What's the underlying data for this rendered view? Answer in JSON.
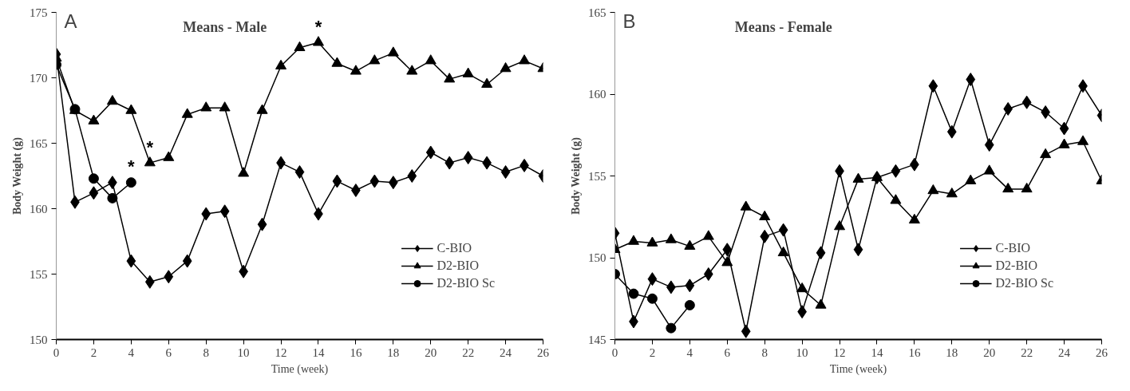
{
  "chart_data": [
    {
      "type": "line",
      "title": "Means - Male",
      "xlabel": "Time (week)",
      "ylabel": "Body Weight (g)",
      "x": [
        0,
        1,
        2,
        3,
        4,
        5,
        6,
        7,
        8,
        9,
        10,
        11,
        12,
        13,
        14,
        15,
        16,
        17,
        18,
        19,
        20,
        21,
        22,
        23,
        24,
        25,
        26
      ],
      "series": [
        {
          "name": "C-BIO",
          "color": "#000000",
          "marker": "diamond",
          "values": [
            171.8,
            160.5,
            161.2,
            162.0,
            156.0,
            154.4,
            154.8,
            156.0,
            159.6,
            159.8,
            155.2,
            158.8,
            163.5,
            162.8,
            159.6,
            162.1,
            161.4,
            162.1,
            162.0,
            162.5,
            164.3,
            163.5,
            163.9,
            163.5,
            162.8,
            163.3,
            162.5
          ]
        },
        {
          "name": "D2-BIO",
          "color": "#000000",
          "marker": "triangle",
          "values": [
            171.5,
            167.5,
            166.7,
            168.2,
            167.5,
            163.5,
            163.9,
            167.2,
            167.7,
            167.7,
            162.7,
            167.5,
            170.9,
            172.3,
            172.7,
            171.1,
            170.5,
            171.3,
            171.9,
            170.5,
            171.3,
            169.9,
            170.3,
            169.5,
            170.7,
            171.3,
            170.7
          ]
        },
        {
          "name": "D2-BIO Sc",
          "color": "#000000",
          "marker": "circle",
          "x": [
            0,
            1,
            2,
            3,
            4
          ],
          "values": [
            171.0,
            167.6,
            162.3,
            160.8,
            162.0
          ]
        }
      ],
      "xlim": [
        0,
        26
      ],
      "xticks": [
        0,
        2,
        4,
        6,
        8,
        10,
        12,
        14,
        16,
        18,
        20,
        22,
        24,
        26
      ],
      "ylim": [
        150,
        175
      ],
      "yticks": [
        150,
        155,
        160,
        165,
        170,
        175
      ],
      "grid": false,
      "legend": "bottom right",
      "annotations": [
        "A",
        {
          "text": "*",
          "x": 4,
          "y": 162.0
        },
        {
          "text": "*",
          "x": 5,
          "y": 163.5
        },
        {
          "text": "*",
          "x": 14,
          "y": 172.7
        }
      ]
    },
    {
      "type": "line",
      "title": "Means - Female",
      "xlabel": "Time (week)",
      "ylabel": "Body Weight (g)",
      "x": [
        0,
        1,
        2,
        3,
        4,
        5,
        6,
        7,
        8,
        9,
        10,
        11,
        12,
        13,
        14,
        15,
        16,
        17,
        18,
        19,
        20,
        21,
        22,
        23,
        24,
        25,
        26
      ],
      "series": [
        {
          "name": "C-BIO",
          "color": "#000000",
          "marker": "diamond",
          "values": [
            151.5,
            146.1,
            148.7,
            148.2,
            148.3,
            149.0,
            150.5,
            145.5,
            151.3,
            151.7,
            146.7,
            150.3,
            155.3,
            150.5,
            154.9,
            155.3,
            155.7,
            160.5,
            157.7,
            160.9,
            156.9,
            159.1,
            159.5,
            158.9,
            157.9,
            160.5,
            158.7
          ]
        },
        {
          "name": "D2-BIO",
          "color": "#000000",
          "marker": "triangle",
          "values": [
            150.5,
            151.0,
            150.9,
            151.1,
            150.7,
            151.3,
            149.7,
            153.1,
            152.5,
            150.3,
            148.1,
            147.1,
            151.9,
            154.8,
            154.9,
            153.5,
            152.3,
            154.1,
            153.9,
            154.7,
            155.3,
            154.2,
            154.2,
            156.3,
            156.9,
            157.1,
            154.7
          ]
        },
        {
          "name": "D2-BIO Sc",
          "color": "#000000",
          "marker": "circle",
          "x": [
            0,
            1,
            2,
            3,
            4
          ],
          "values": [
            149.0,
            147.8,
            147.5,
            145.7,
            147.1
          ]
        }
      ],
      "xlim": [
        0,
        26
      ],
      "xticks": [
        0,
        2,
        4,
        6,
        8,
        10,
        12,
        14,
        16,
        18,
        20,
        22,
        24,
        26
      ],
      "ylim": [
        145,
        165
      ],
      "yticks": [
        145,
        150,
        155,
        160,
        165
      ],
      "grid": false,
      "legend": "bottom right",
      "annotations": [
        "B"
      ]
    }
  ]
}
